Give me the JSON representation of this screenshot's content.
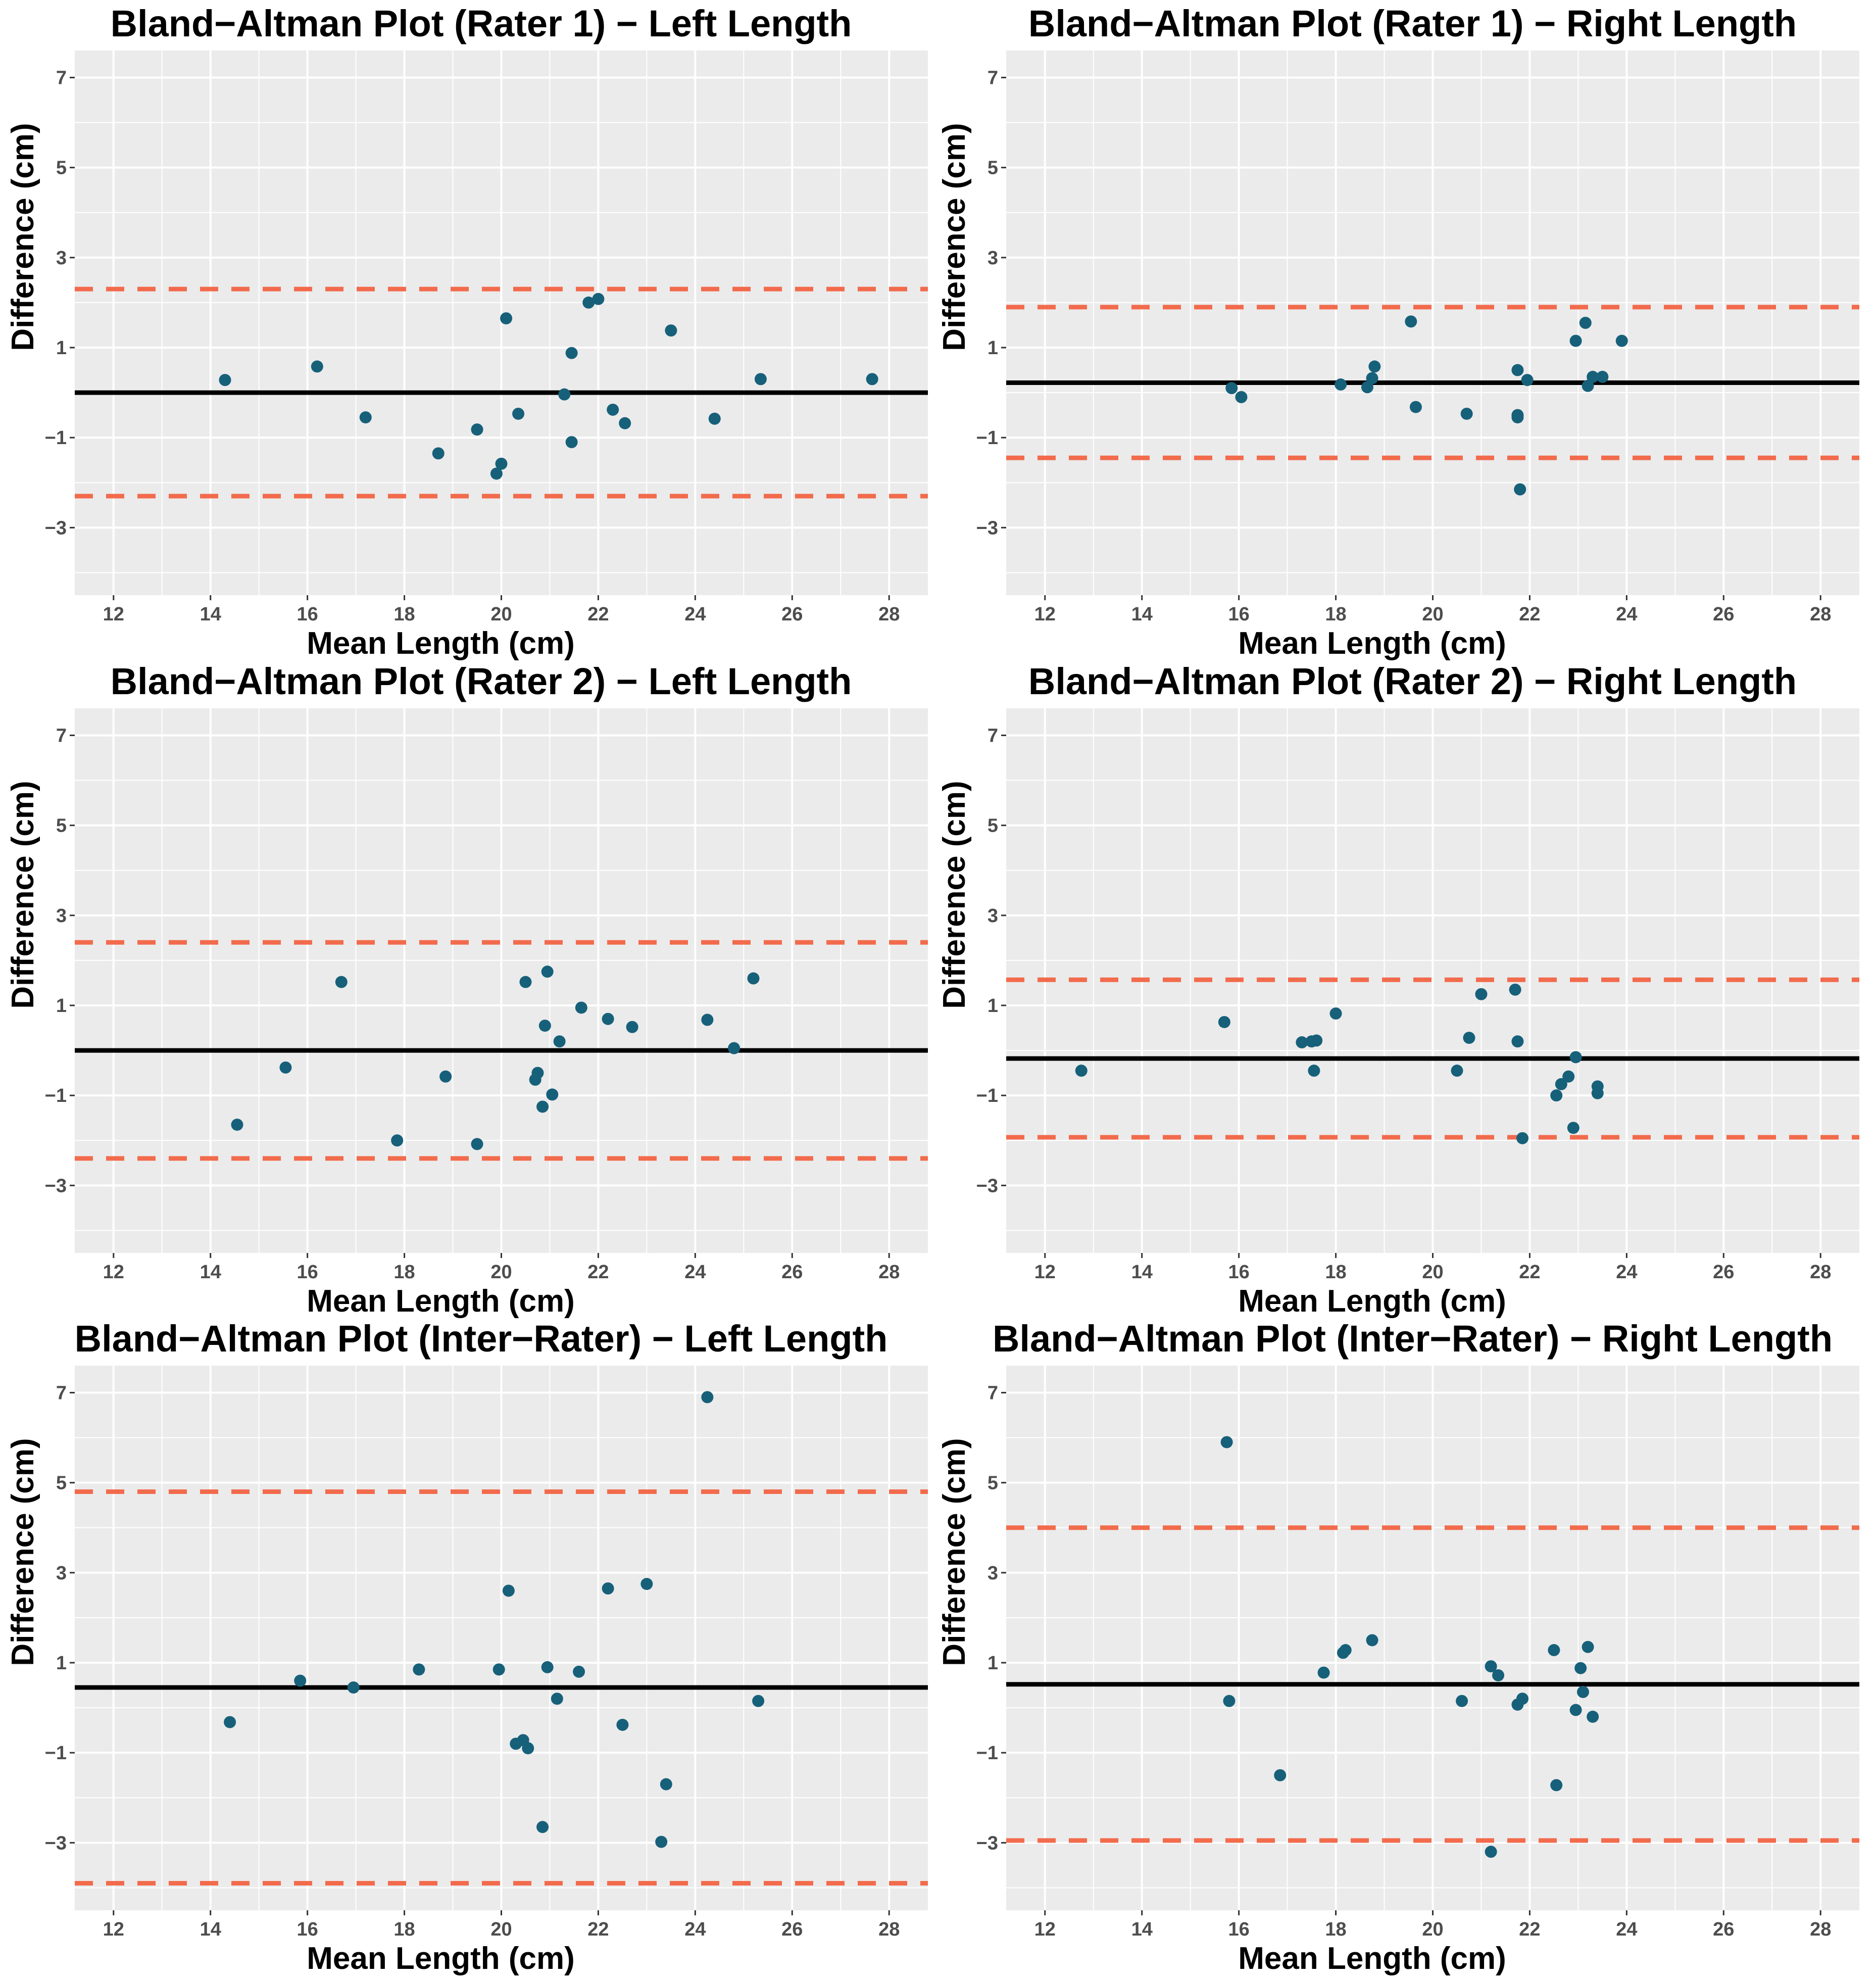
{
  "colors": {
    "panel_bg": "#ebebeb",
    "grid": "#ffffff",
    "point": "#17607a",
    "mean_line": "#000000",
    "loa_line": "#f26b4c"
  },
  "chart_data": [
    {
      "type": "scatter",
      "title": "Bland−Altman Plot (Rater 1) − Left Length",
      "xlabel": "Mean Length (cm)",
      "ylabel": "Difference (cm)",
      "xlim": [
        11.2,
        28.8
      ],
      "ylim": [
        -4.5,
        7.6
      ],
      "xticks": [
        "12",
        "14",
        "16",
        "18",
        "20",
        "22",
        "24",
        "26",
        "28"
      ],
      "yticks": [
        "−3",
        "−1",
        "1",
        "3",
        "5",
        "7"
      ],
      "mean_diff": 0.0,
      "loa_upper": 2.3,
      "loa_lower": -2.3,
      "x": [
        14.3,
        16.2,
        17.2,
        18.7,
        19.5,
        19.9,
        20.0,
        20.1,
        20.35,
        21.3,
        21.45,
        21.45,
        21.8,
        22.0,
        22.3,
        22.55,
        23.5,
        24.4,
        25.35,
        27.65
      ],
      "y": [
        0.28,
        0.58,
        -0.55,
        -1.35,
        -0.82,
        -1.8,
        -1.58,
        1.65,
        -0.47,
        -0.04,
        0.88,
        -1.1,
        2.0,
        2.08,
        -0.38,
        -0.68,
        1.38,
        -0.58,
        0.3,
        0.3
      ]
    },
    {
      "type": "scatter",
      "title": "Bland−Altman Plot (Rater 1) − Right Length",
      "xlabel": "Mean Length (cm)",
      "ylabel": "Difference (cm)",
      "xlim": [
        11.2,
        28.8
      ],
      "ylim": [
        -4.5,
        7.6
      ],
      "xticks": [
        "12",
        "14",
        "16",
        "18",
        "20",
        "22",
        "24",
        "26",
        "28"
      ],
      "yticks": [
        "−3",
        "−1",
        "1",
        "3",
        "5",
        "7"
      ],
      "mean_diff": 0.22,
      "loa_upper": 1.9,
      "loa_lower": -1.45,
      "x": [
        15.85,
        16.05,
        18.1,
        18.65,
        18.75,
        18.8,
        19.55,
        19.65,
        20.7,
        21.75,
        21.75,
        21.75,
        21.8,
        21.95,
        22.95,
        23.15,
        23.2,
        23.3,
        23.5,
        23.9
      ],
      "y": [
        0.1,
        -0.1,
        0.18,
        0.12,
        0.32,
        0.58,
        1.58,
        -0.32,
        -0.47,
        0.5,
        -0.55,
        -0.5,
        -2.15,
        0.28,
        1.15,
        1.55,
        0.15,
        0.35,
        0.35,
        1.15
      ]
    },
    {
      "type": "scatter",
      "title": "Bland−Altman Plot (Rater 2) − Left Length",
      "xlabel": "Mean Length (cm)",
      "ylabel": "Difference (cm)",
      "xlim": [
        11.2,
        28.8
      ],
      "ylim": [
        -4.5,
        7.6
      ],
      "xticks": [
        "12",
        "14",
        "16",
        "18",
        "20",
        "22",
        "24",
        "26",
        "28"
      ],
      "yticks": [
        "−3",
        "−1",
        "1",
        "3",
        "5",
        "7"
      ],
      "mean_diff": 0.0,
      "loa_upper": 2.4,
      "loa_lower": -2.4,
      "x": [
        14.55,
        15.55,
        16.7,
        17.85,
        18.85,
        19.5,
        20.5,
        20.7,
        20.75,
        20.85,
        20.9,
        20.95,
        21.05,
        21.2,
        21.65,
        22.2,
        22.7,
        24.25,
        24.8,
        25.2
      ],
      "y": [
        -1.65,
        -0.38,
        1.52,
        -2.0,
        -0.58,
        -2.08,
        1.52,
        -0.65,
        -0.5,
        -1.25,
        0.55,
        1.75,
        -0.98,
        0.2,
        0.95,
        0.7,
        0.52,
        0.68,
        0.05,
        1.6
      ]
    },
    {
      "type": "scatter",
      "title": "Bland−Altman Plot (Rater 2) − Right Length",
      "xlabel": "Mean Length (cm)",
      "ylabel": "Difference (cm)",
      "xlim": [
        11.2,
        28.8
      ],
      "ylim": [
        -4.5,
        7.6
      ],
      "xticks": [
        "12",
        "14",
        "16",
        "18",
        "20",
        "22",
        "24",
        "26",
        "28"
      ],
      "yticks": [
        "−3",
        "−1",
        "1",
        "3",
        "5",
        "7"
      ],
      "mean_diff": -0.18,
      "loa_upper": 1.57,
      "loa_lower": -1.93,
      "x": [
        12.75,
        15.7,
        17.3,
        17.5,
        17.55,
        17.6,
        18.0,
        20.5,
        20.75,
        21.0,
        21.7,
        21.75,
        21.85,
        22.55,
        22.65,
        22.8,
        22.9,
        22.95,
        23.4,
        23.4
      ],
      "y": [
        -0.45,
        0.63,
        0.18,
        0.2,
        -0.45,
        0.22,
        0.82,
        -0.45,
        0.28,
        1.25,
        1.35,
        0.2,
        -1.95,
        -1.0,
        -0.75,
        -0.58,
        -1.72,
        -0.15,
        -0.8,
        -0.95
      ]
    },
    {
      "type": "scatter",
      "title": "Bland−Altman Plot (Inter−Rater) − Left Length",
      "xlabel": "Mean Length (cm)",
      "ylabel": "Difference (cm)",
      "xlim": [
        11.2,
        28.8
      ],
      "ylim": [
        -4.5,
        7.6
      ],
      "xticks": [
        "12",
        "14",
        "16",
        "18",
        "20",
        "22",
        "24",
        "26",
        "28"
      ],
      "yticks": [
        "−3",
        "−1",
        "1",
        "3",
        "5",
        "7"
      ],
      "mean_diff": 0.45,
      "loa_upper": 4.8,
      "loa_lower": -3.9,
      "x": [
        14.4,
        15.85,
        16.95,
        18.3,
        19.95,
        20.15,
        20.3,
        20.45,
        20.55,
        20.85,
        20.95,
        21.15,
        21.6,
        22.2,
        22.5,
        23.0,
        23.3,
        23.4,
        24.25,
        25.3
      ],
      "y": [
        -0.32,
        0.6,
        0.45,
        0.85,
        0.85,
        2.6,
        -0.8,
        -0.72,
        -0.9,
        -2.65,
        0.9,
        0.2,
        0.8,
        2.65,
        -0.38,
        2.75,
        -2.98,
        -1.7,
        6.9,
        0.15
      ]
    },
    {
      "type": "scatter",
      "title": "Bland−Altman Plot (Inter−Rater) − Right Length",
      "xlabel": "Mean Length (cm)",
      "ylabel": "Difference (cm)",
      "xlim": [
        11.2,
        28.8
      ],
      "ylim": [
        -4.5,
        7.6
      ],
      "xticks": [
        "12",
        "14",
        "16",
        "18",
        "20",
        "22",
        "24",
        "26",
        "28"
      ],
      "yticks": [
        "−3",
        "−1",
        "1",
        "3",
        "5",
        "7"
      ],
      "mean_diff": 0.52,
      "loa_upper": 4.0,
      "loa_lower": -2.95,
      "x": [
        15.75,
        15.8,
        16.85,
        17.75,
        18.15,
        18.2,
        18.75,
        20.6,
        21.2,
        21.2,
        21.35,
        21.75,
        21.85,
        22.5,
        22.55,
        22.95,
        23.05,
        23.1,
        23.2,
        23.3
      ],
      "y": [
        5.9,
        0.15,
        -1.5,
        0.78,
        1.22,
        1.28,
        1.5,
        0.15,
        -3.2,
        0.92,
        0.72,
        0.07,
        0.2,
        1.28,
        -1.72,
        -0.05,
        0.88,
        0.35,
        1.35,
        -0.2
      ]
    }
  ]
}
